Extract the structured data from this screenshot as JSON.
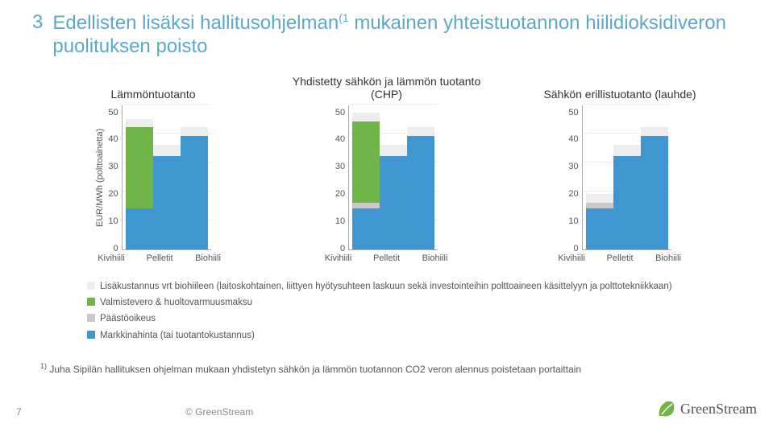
{
  "title_number": "3",
  "title_html": "Edellisten lisäksi hallitusohjelman<sup>(1</sup> mukainen yhteistuotannon hiilidioksidiveron puolituksen poisto",
  "ylabel": "EUR/MWh (polttoainetta)",
  "ymax": 50,
  "ytick_step": 10,
  "colors": {
    "market": "#3f96d1",
    "emission": "#c9c9c9",
    "excise": "#70b54a",
    "extra": "#ededed",
    "grid": "#eeeeee"
  },
  "categories": [
    "Kivihiili",
    "Pelletit",
    "Biohiili"
  ],
  "charts": [
    {
      "title": "Lämmöntuotanto",
      "series": [
        {
          "market": 14,
          "emission": 0,
          "excise": 28,
          "extra": 3
        },
        {
          "market": 32,
          "emission": 0,
          "excise": 0,
          "extra": 4
        },
        {
          "market": 39,
          "emission": 0,
          "excise": 0,
          "extra": 3
        }
      ]
    },
    {
      "title": "Yhdistetty sähkön ja lämmön tuotanto (CHP)",
      "series": [
        {
          "market": 14,
          "emission": 2,
          "excise": 28,
          "extra": 3
        },
        {
          "market": 32,
          "emission": 0,
          "excise": 0,
          "extra": 4
        },
        {
          "market": 39,
          "emission": 0,
          "excise": 0,
          "extra": 3
        }
      ]
    },
    {
      "title": "Sähkön erillistuotanto (lauhde)",
      "series": [
        {
          "market": 14,
          "emission": 2,
          "excise": 0,
          "extra": 3
        },
        {
          "market": 32,
          "emission": 0,
          "excise": 0,
          "extra": 4
        },
        {
          "market": 39,
          "emission": 0,
          "excise": 0,
          "extra": 3
        }
      ]
    }
  ],
  "legend": [
    {
      "label": "Lisäkustannus vrt biohiileen (laitoskohtainen, liittyen hyötysuhteen laskuun sekä investointeihin polttoaineen käsittelyyn ja polttotekniikkaan)",
      "color": "#ededed"
    },
    {
      "label": "Valmistevero & huoltovarmuusmaksu",
      "color": "#70b54a"
    },
    {
      "label": "Päästöoikeus",
      "color": "#c9c9c9"
    },
    {
      "label": "Markkinahinta (tai tuotantokustannus)",
      "color": "#3f96d1"
    }
  ],
  "footnote_html": "<sup>1)</sup> Juha Sipilän hallituksen ohjelman mukaan yhdistetyn sähkön ja lämmön tuotannon CO2 veron alennus poistetaan portaittain",
  "page_number": "7",
  "copyright": "© GreenStream",
  "logo_text": "GreenStream"
}
